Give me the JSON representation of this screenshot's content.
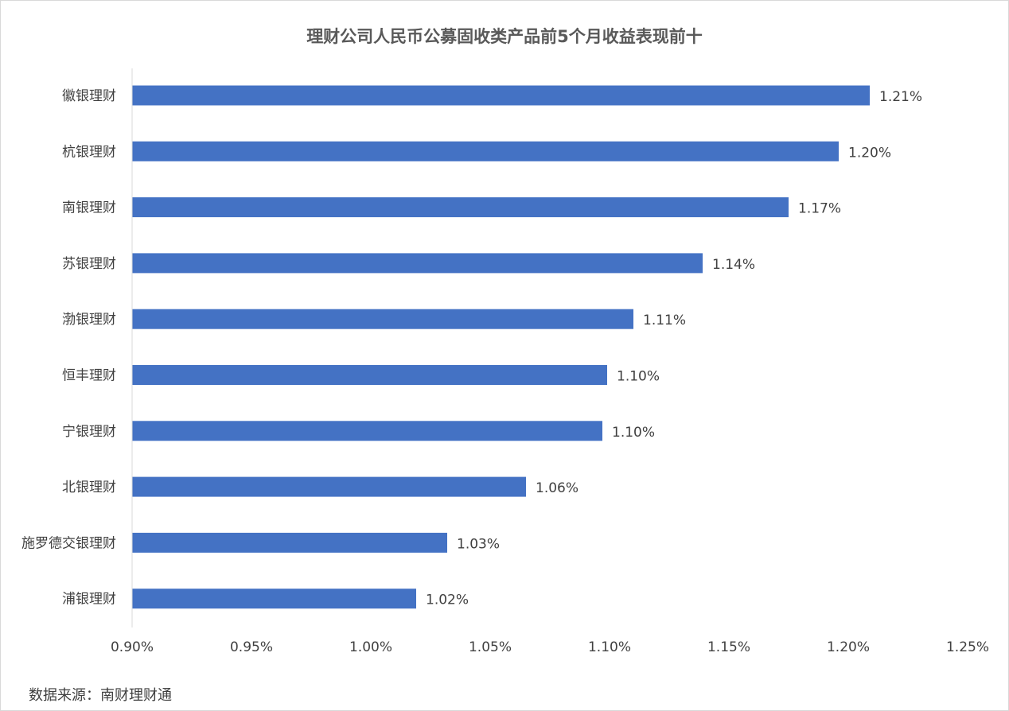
{
  "chart_data": {
    "type": "bar",
    "orientation": "horizontal",
    "title": "理财公司人民币公募固收类产品前5个月收益表现前十",
    "categories": [
      "徽银理财",
      "杭银理财",
      "南银理财",
      "苏银理财",
      "渤银理财",
      "恒丰理财",
      "宁银理财",
      "北银理财",
      "施罗德交银理财",
      "浦银理财"
    ],
    "values": [
      1.209,
      1.196,
      1.175,
      1.139,
      1.11,
      1.099,
      1.097,
      1.065,
      1.032,
      1.019
    ],
    "value_labels": [
      "1.21%",
      "1.20%",
      "1.17%",
      "1.14%",
      "1.11%",
      "1.10%",
      "1.10%",
      "1.06%",
      "1.03%",
      "1.02%"
    ],
    "x_ticks": [
      0.9,
      0.95,
      1.0,
      1.05,
      1.1,
      1.15,
      1.2,
      1.25
    ],
    "x_tick_labels": [
      "0.90%",
      "0.95%",
      "1.00%",
      "1.05%",
      "1.10%",
      "1.15%",
      "1.20%",
      "1.25%"
    ],
    "xlim": [
      0.9,
      1.25
    ],
    "grid": false,
    "legend": "none",
    "bar_color": "#4472c4"
  },
  "source": "数据来源：南财理财通"
}
